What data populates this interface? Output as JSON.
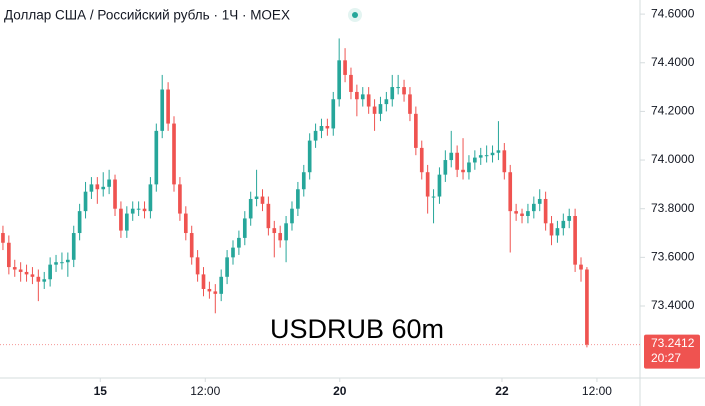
{
  "chart_data": {
    "type": "candlestick",
    "title": "Доллар США / Российский рубль · 1Ч · MOEX",
    "annotation": "USDRUB 60m",
    "countdown": "20:27",
    "up_color": "#26a69a",
    "down_color": "#ef5350",
    "grid": false,
    "xlim": [
      -0.5,
      108
    ],
    "xticks": [
      {
        "value": 16.5,
        "label": "15"
      },
      {
        "value": 34.3,
        "label": "12:00"
      },
      {
        "value": 57.1,
        "label": "20"
      },
      {
        "value": 84.6,
        "label": "22"
      },
      {
        "value": 100.7,
        "label": "12:00"
      }
    ],
    "ylim": [
      73.104,
      74.658
    ],
    "yticks": [
      {
        "value": 73.4,
        "label": "73.4000"
      },
      {
        "value": 73.6,
        "label": "73.6000"
      },
      {
        "value": 73.8,
        "label": "73.8000"
      },
      {
        "value": 74.0,
        "label": "74.0000"
      },
      {
        "value": 74.2,
        "label": "74.2000"
      },
      {
        "value": 74.4,
        "label": "74.4000"
      },
      {
        "value": 74.6,
        "label": "74.6000"
      }
    ],
    "open": [
      73.7,
      73.66,
      73.56,
      73.55,
      73.54,
      73.53,
      73.52,
      73.5,
      73.51,
      73.57,
      73.58,
      73.58,
      73.59,
      73.7,
      73.79,
      73.87,
      73.9,
      73.88,
      73.89,
      73.92,
      73.8,
      73.71,
      73.78,
      73.8,
      73.8,
      73.79,
      73.9,
      74.12,
      74.29,
      74.15,
      73.9,
      73.78,
      73.7,
      73.6,
      73.53,
      73.47,
      73.46,
      73.45,
      73.52,
      73.6,
      73.64,
      73.68,
      73.76,
      73.84,
      73.85,
      73.82,
      73.72,
      73.7,
      73.67,
      73.74,
      73.8,
      73.88,
      73.95,
      74.08,
      74.12,
      74.14,
      74.13,
      74.25,
      74.41,
      74.35,
      74.28,
      74.25,
      74.27,
      74.22,
      74.19,
      74.23,
      74.25,
      74.3,
      74.3,
      74.27,
      74.19,
      74.05,
      73.95,
      73.85,
      73.85,
      73.94,
      74.0,
      74.03,
      73.96,
      73.95,
      73.99,
      74.01,
      74.02,
      74.02,
      74.03,
      74.04,
      73.95,
      73.79,
      73.78,
      73.77,
      73.79,
      73.82,
      73.84,
      73.74,
      73.69,
      73.72,
      73.75,
      73.77,
      73.57,
      73.55
    ],
    "high": [
      73.73,
      73.69,
      73.59,
      73.58,
      73.57,
      73.56,
      73.55,
      73.54,
      73.6,
      73.61,
      73.62,
      73.62,
      73.73,
      73.82,
      73.91,
      73.93,
      73.93,
      73.95,
      73.96,
      73.94,
      73.83,
      73.81,
      73.83,
      73.83,
      73.83,
      73.93,
      74.15,
      74.35,
      74.32,
      74.18,
      73.93,
      73.81,
      73.73,
      73.63,
      73.56,
      73.5,
      73.49,
      73.55,
      73.63,
      73.67,
      73.71,
      73.79,
      73.87,
      73.96,
      73.88,
      73.85,
      73.75,
      73.73,
      73.77,
      73.83,
      73.91,
      73.98,
      74.11,
      74.15,
      74.17,
      74.17,
      74.28,
      74.5,
      74.46,
      74.38,
      74.31,
      74.3,
      74.3,
      74.25,
      74.26,
      74.28,
      74.35,
      74.35,
      74.33,
      74.3,
      74.22,
      74.08,
      73.98,
      73.88,
      73.97,
      74.04,
      74.12,
      74.06,
      74.09,
      74.02,
      74.04,
      74.05,
      74.06,
      74.06,
      74.16,
      74.07,
      73.98,
      73.82,
      73.8,
      73.82,
      73.85,
      73.88,
      73.87,
      73.77,
      73.75,
      73.78,
      73.8,
      73.8,
      73.6,
      73.56
    ],
    "low": [
      73.63,
      73.53,
      73.52,
      73.5,
      73.5,
      73.49,
      73.42,
      73.47,
      73.48,
      73.54,
      73.55,
      73.52,
      73.56,
      73.67,
      73.76,
      73.84,
      73.82,
      73.85,
      73.86,
      73.77,
      73.68,
      73.68,
      73.75,
      73.77,
      73.76,
      73.76,
      73.87,
      74.09,
      74.12,
      73.87,
      73.75,
      73.67,
      73.57,
      73.5,
      73.44,
      73.43,
      73.37,
      73.42,
      73.49,
      73.57,
      73.61,
      73.65,
      73.73,
      73.81,
      73.79,
      73.69,
      73.6,
      73.64,
      73.58,
      73.71,
      73.77,
      73.85,
      73.92,
      74.05,
      74.09,
      74.1,
      74.1,
      74.22,
      74.32,
      74.25,
      74.18,
      74.22,
      74.19,
      74.12,
      74.16,
      74.2,
      74.22,
      74.27,
      74.24,
      74.16,
      74.02,
      73.92,
      73.78,
      73.74,
      73.82,
      73.91,
      73.97,
      73.93,
      73.92,
      73.92,
      73.96,
      73.98,
      73.99,
      73.99,
      74.0,
      73.92,
      73.62,
      73.75,
      73.74,
      73.74,
      73.76,
      73.79,
      73.71,
      73.65,
      73.66,
      73.69,
      73.72,
      73.54,
      73.5,
      73.23
    ],
    "close": [
      73.66,
      73.56,
      73.55,
      73.54,
      73.53,
      73.52,
      73.5,
      73.51,
      73.57,
      73.58,
      73.58,
      73.59,
      73.7,
      73.79,
      73.87,
      73.9,
      73.88,
      73.89,
      73.92,
      73.8,
      73.71,
      73.78,
      73.8,
      73.8,
      73.79,
      73.9,
      74.12,
      74.29,
      74.15,
      73.9,
      73.78,
      73.7,
      73.6,
      73.53,
      73.47,
      73.46,
      73.45,
      73.52,
      73.6,
      73.64,
      73.68,
      73.76,
      73.84,
      73.85,
      73.82,
      73.72,
      73.7,
      73.67,
      73.74,
      73.8,
      73.88,
      73.95,
      74.08,
      74.12,
      74.14,
      74.13,
      74.25,
      74.41,
      74.35,
      74.28,
      74.25,
      74.27,
      74.22,
      74.19,
      74.23,
      74.25,
      74.3,
      74.3,
      74.27,
      74.19,
      74.05,
      73.95,
      73.85,
      73.85,
      73.94,
      74.0,
      74.03,
      73.96,
      73.95,
      73.99,
      74.01,
      74.02,
      74.02,
      74.03,
      74.04,
      73.95,
      73.79,
      73.78,
      73.77,
      73.79,
      73.82,
      73.84,
      73.74,
      73.69,
      73.72,
      73.75,
      73.77,
      73.57,
      73.55,
      73.2412
    ]
  }
}
